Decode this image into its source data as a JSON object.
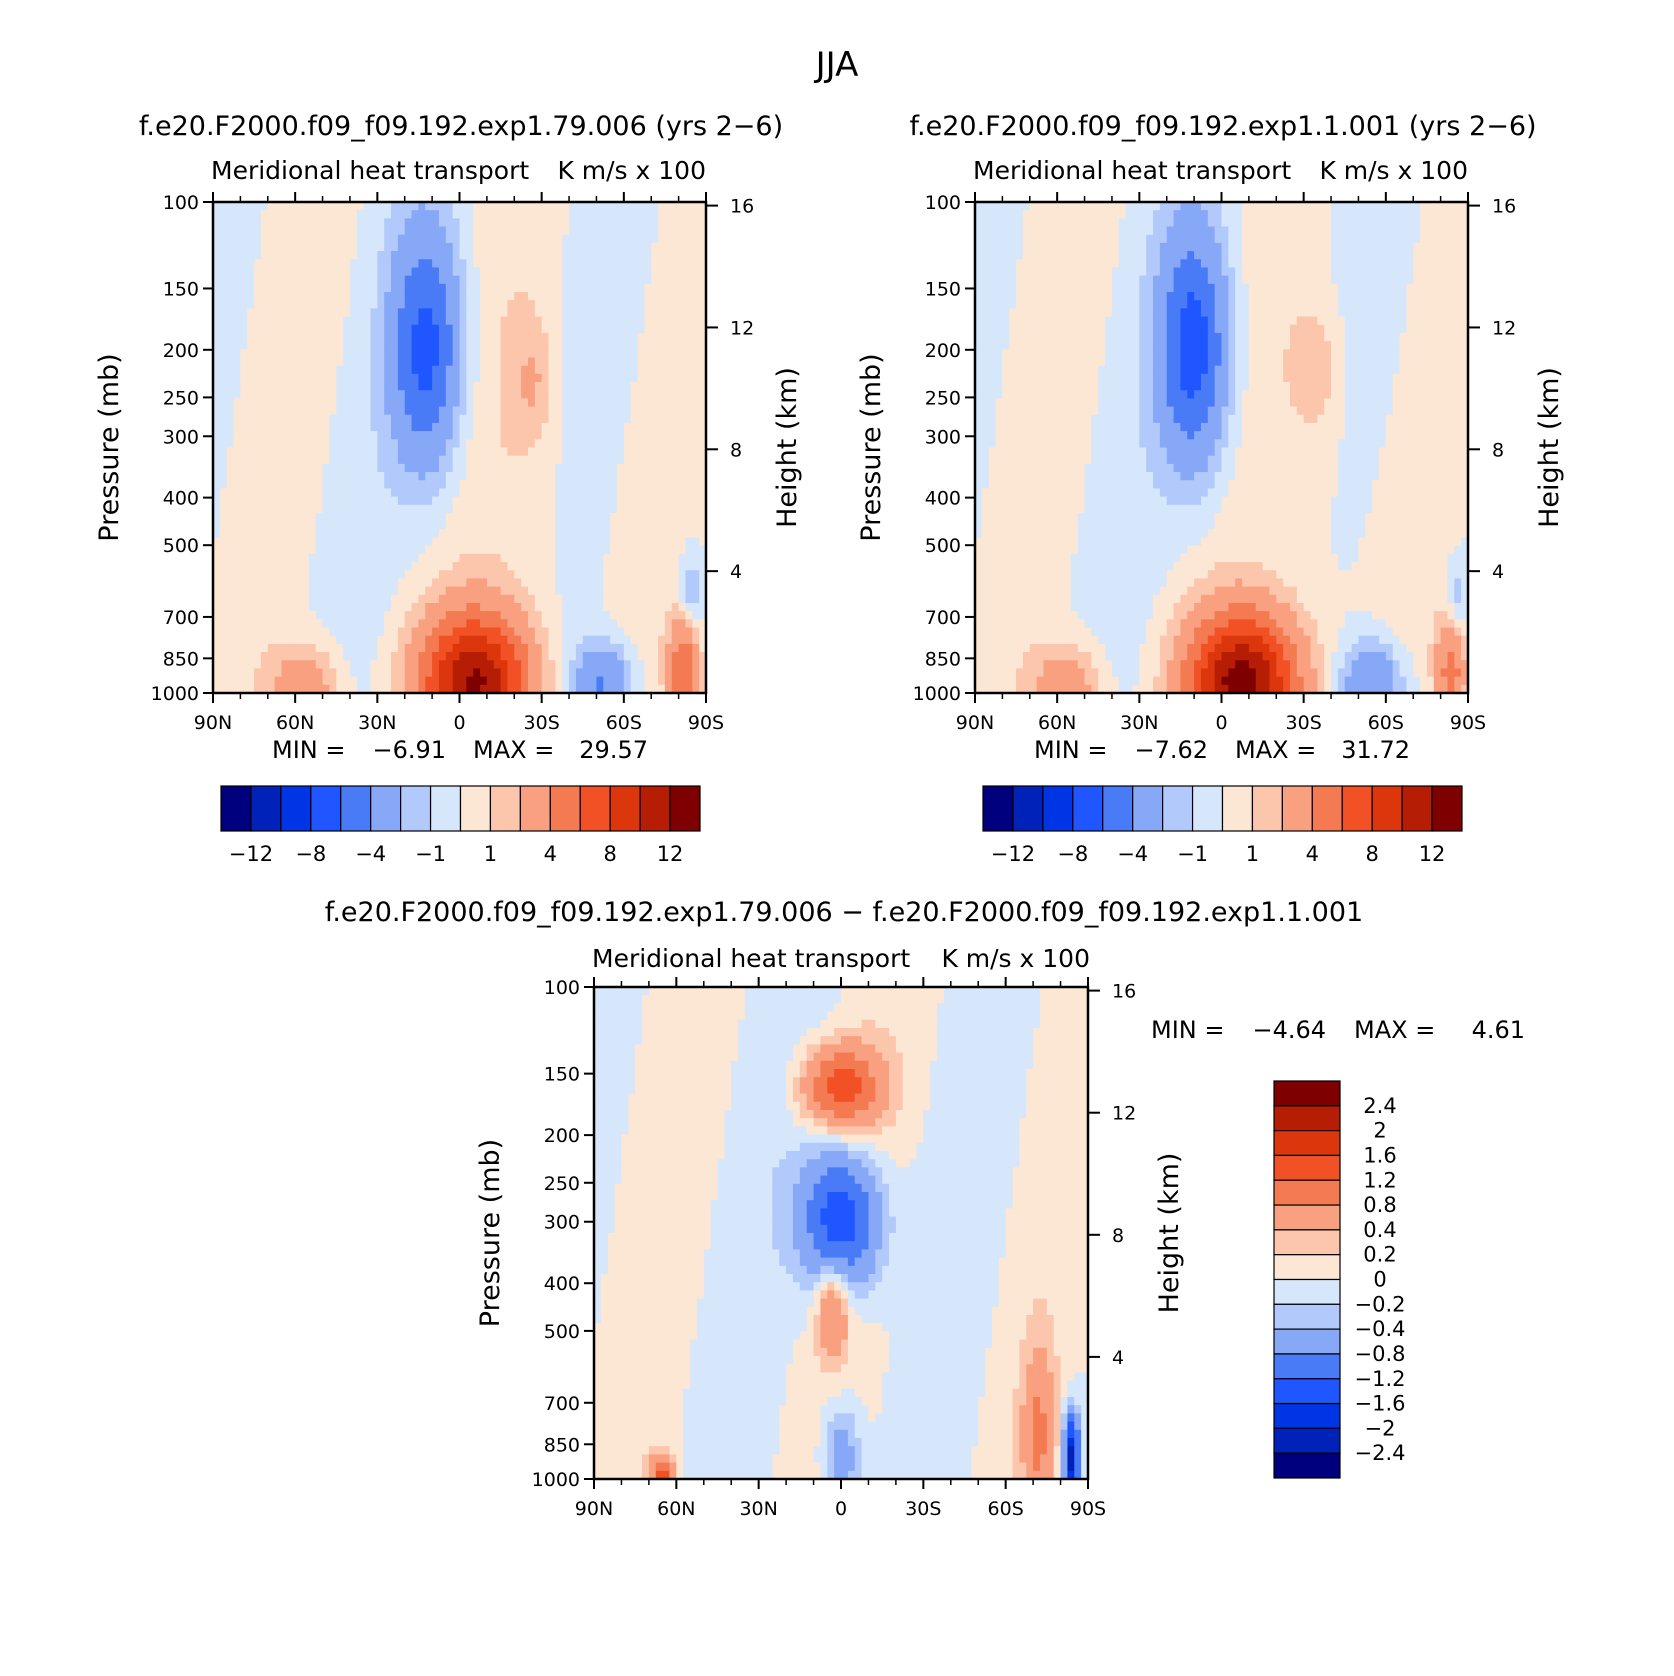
{
  "figure_title": "JJA",
  "levels_main": [
    -12,
    -10,
    -8,
    -6,
    -4,
    -2,
    -1,
    0,
    1,
    2,
    4,
    6,
    8,
    10,
    12
  ],
  "colors_main": [
    "#00007f",
    "#0022b8",
    "#0035e6",
    "#1f56ff",
    "#4a7bf7",
    "#86a8f7",
    "#b1c9fb",
    "#d6e7fb",
    "#fce7d4",
    "#fbc6ab",
    "#f8a07f",
    "#f47a52",
    "#f25125",
    "#dc360c",
    "#b51e05",
    "#7f0000"
  ],
  "colorbar_main_ticks": [
    {
      "v": -12,
      "label": "−12"
    },
    {
      "v": -8,
      "label": "−8"
    },
    {
      "v": -4,
      "label": "−4"
    },
    {
      "v": -1,
      "label": "−1"
    },
    {
      "v": 1,
      "label": "1"
    },
    {
      "v": 4,
      "label": "4"
    },
    {
      "v": 8,
      "label": "8"
    },
    {
      "v": 12,
      "label": "12"
    }
  ],
  "levels_diff": [
    -2.4,
    -2,
    -1.6,
    -1.2,
    -0.8,
    -0.4,
    -0.2,
    0,
    0.2,
    0.4,
    0.8,
    1.2,
    1.6,
    2,
    2.4
  ],
  "colorbar_diff_labels": [
    "−2.4",
    "−2",
    "−1.6",
    "−1.2",
    "−0.8",
    "−0.4",
    "−0.2",
    "0",
    "0.2",
    "0.4",
    "0.8",
    "1.2",
    "1.6",
    "2",
    "2.4"
  ],
  "panels": [
    {
      "title": "f.e20.F2000.f09_f09.192.exp1.79.006 (yrs 2−6)",
      "left_label": "Meridional heat transport",
      "right_label": "K m/s x 100",
      "min_label": "MIN =",
      "min_value": "−6.91",
      "max_label": "MAX =",
      "max_value": "29.57"
    },
    {
      "title": "f.e20.F2000.f09_f09.192.exp1.1.001 (yrs 2−6)",
      "left_label": "Meridional heat transport",
      "right_label": "K m/s x 100",
      "min_label": "MIN =",
      "min_value": "−7.62",
      "max_label": "MAX =",
      "max_value": "31.72"
    },
    {
      "title": "f.e20.F2000.f09_f09.192.exp1.79.006 − f.e20.F2000.f09_f09.192.exp1.1.001",
      "left_label": "Meridional heat transport",
      "right_label": "K m/s x 100",
      "min_label": "MIN =",
      "min_value": "−4.64",
      "max_label": "MAX =",
      "max_value": "4.61"
    }
  ],
  "chart_data": [
    {
      "type": "heatmap",
      "panel": 0,
      "xlabel": "",
      "ylabel": "Pressure (mb)",
      "ylabel_right": "Height (km)",
      "x_ticks": [
        "90N",
        "60N",
        "30N",
        "0",
        "30S",
        "60S",
        "90S"
      ],
      "y_ticks": [
        100,
        150,
        200,
        250,
        300,
        400,
        500,
        700,
        850,
        1000
      ],
      "height_ticks": [
        16,
        12,
        8,
        4
      ],
      "xlim": [
        90,
        -90
      ],
      "ylim": [
        1000,
        100
      ],
      "y_scale": "log",
      "features": [
        {
          "lat": 12,
          "p": 200,
          "value": -6.5,
          "dlat": 9,
          "dlogp": 0.17
        },
        {
          "lat": -27,
          "p": 230,
          "value": 1.5,
          "dlat": 5,
          "dlogp": 0.08
        },
        {
          "lat": -25,
          "p": 350,
          "value": 0.8,
          "dlat": 12,
          "dlogp": 0.35
        },
        {
          "lat": -6,
          "p": 960,
          "value": 12,
          "dlat": 14,
          "dlogp": 0.1
        },
        {
          "lat": -52,
          "p": 960,
          "value": -4.5,
          "dlat": 8,
          "dlogp": 0.06
        },
        {
          "lat": 56,
          "p": 970,
          "value": 3.5,
          "dlat": 9,
          "dlogp": 0.06
        },
        {
          "lat": -82,
          "p": 900,
          "value": 6,
          "dlat": 4,
          "dlogp": 0.08
        },
        {
          "lat": -84,
          "p": 640,
          "value": -2.5,
          "dlat": 3,
          "dlogp": 0.06
        }
      ]
    },
    {
      "type": "heatmap",
      "panel": 1,
      "xlabel": "",
      "ylabel": "Pressure (mb)",
      "ylabel_right": "Height (km)",
      "x_ticks": [
        "90N",
        "60N",
        "30N",
        "0",
        "30S",
        "60S",
        "90S"
      ],
      "y_ticks": [
        100,
        150,
        200,
        250,
        300,
        400,
        500,
        700,
        850,
        1000
      ],
      "height_ticks": [
        16,
        12,
        8,
        4
      ],
      "xlim": [
        90,
        -90
      ],
      "ylim": [
        1000,
        100
      ],
      "y_scale": "log",
      "features": [
        {
          "lat": 10,
          "p": 200,
          "value": -7,
          "dlat": 9,
          "dlogp": 0.17
        },
        {
          "lat": -35,
          "p": 220,
          "value": 1.5,
          "dlat": 6,
          "dlogp": 0.08
        },
        {
          "lat": -32,
          "p": 350,
          "value": 0.8,
          "dlat": 12,
          "dlogp": 0.35
        },
        {
          "lat": -8,
          "p": 960,
          "value": 13,
          "dlat": 14,
          "dlogp": 0.1
        },
        {
          "lat": -55,
          "p": 960,
          "value": -4.5,
          "dlat": 8,
          "dlogp": 0.06
        },
        {
          "lat": 56,
          "p": 970,
          "value": 3.5,
          "dlat": 9,
          "dlogp": 0.06
        },
        {
          "lat": -84,
          "p": 900,
          "value": 5,
          "dlat": 4,
          "dlogp": 0.08
        },
        {
          "lat": -86,
          "p": 650,
          "value": -2,
          "dlat": 3,
          "dlogp": 0.06
        }
      ]
    },
    {
      "type": "heatmap",
      "panel": 2,
      "xlabel": "",
      "ylabel": "Pressure (mb)",
      "ylabel_right": "Height (km)",
      "x_ticks": [
        "90N",
        "60N",
        "30N",
        "0",
        "30S",
        "60S",
        "90S"
      ],
      "y_ticks": [
        100,
        150,
        200,
        250,
        300,
        400,
        500,
        700,
        850,
        1000
      ],
      "height_ticks": [
        16,
        12,
        8,
        4
      ],
      "xlim": [
        90,
        -90
      ],
      "ylim": [
        1000,
        100
      ],
      "y_scale": "log",
      "features": [
        {
          "lat": 0,
          "p": 160,
          "value": 1.4,
          "dlat": 10,
          "dlogp": 0.06
        },
        {
          "lat": 0,
          "p": 300,
          "value": -1.6,
          "dlat": 10,
          "dlogp": 0.1
        },
        {
          "lat": 3,
          "p": 450,
          "value": 0.9,
          "dlat": 4,
          "dlogp": 0.07
        },
        {
          "lat": 0,
          "p": 900,
          "value": -0.7,
          "dlat": 5,
          "dlogp": 0.08
        },
        {
          "lat": -72,
          "p": 820,
          "value": 0.8,
          "dlat": 4,
          "dlogp": 0.12
        },
        {
          "lat": -84,
          "p": 900,
          "value": -2.2,
          "dlat": 2,
          "dlogp": 0.06
        },
        {
          "lat": 65,
          "p": 990,
          "value": 1.5,
          "dlat": 3,
          "dlogp": 0.03
        }
      ]
    }
  ]
}
